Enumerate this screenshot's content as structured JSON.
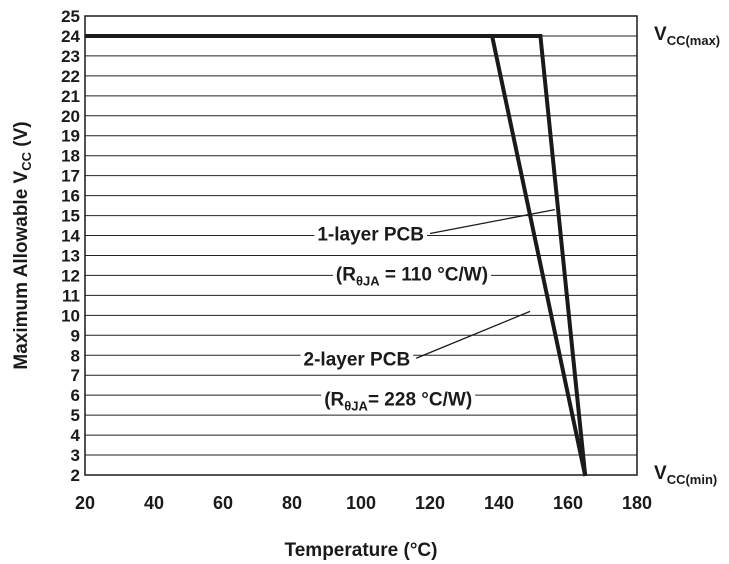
{
  "chart_data": {
    "type": "line",
    "xlabel": "Temperature (°C)",
    "ylabel": {
      "main": "Maximum Allowable V",
      "sub": "CC",
      "tail": " (V)"
    },
    "xlim": [
      20,
      180
    ],
    "ylim": [
      2,
      25
    ],
    "x_ticks": [
      20,
      40,
      60,
      80,
      100,
      120,
      140,
      160,
      180
    ],
    "y_ticks": [
      2,
      3,
      4,
      5,
      6,
      7,
      8,
      9,
      10,
      11,
      12,
      13,
      14,
      15,
      16,
      17,
      18,
      19,
      20,
      21,
      22,
      23,
      24,
      25
    ],
    "grid": true,
    "series": [
      {
        "x": [
          20,
          138,
          165
        ],
        "y": [
          24,
          24,
          1.95
        ]
      },
      {
        "x": [
          20,
          152,
          165
        ],
        "y": [
          24,
          24,
          1.95
        ]
      }
    ],
    "right_labels": [
      {
        "main": "V",
        "sub": "CC(max)",
        "y": 24
      },
      {
        "main": "V",
        "sub": "CC(min)",
        "y": 2
      }
    ],
    "annotations": [
      {
        "line1": "1-layer PCB",
        "line2_pre": "(R",
        "line2_sub": "θJA",
        "line2_post": " = 110 °C/W)",
        "label_at": [
          120,
          14.1
        ],
        "point_at": [
          156.2,
          15.3
        ]
      },
      {
        "line1": "2-layer PCB",
        "line2_pre": "(R",
        "line2_sub": "θJA",
        "line2_post": "= 228 °C/W)",
        "label_at": [
          116,
          7.85
        ],
        "point_at": [
          149,
          10.2
        ]
      }
    ]
  }
}
